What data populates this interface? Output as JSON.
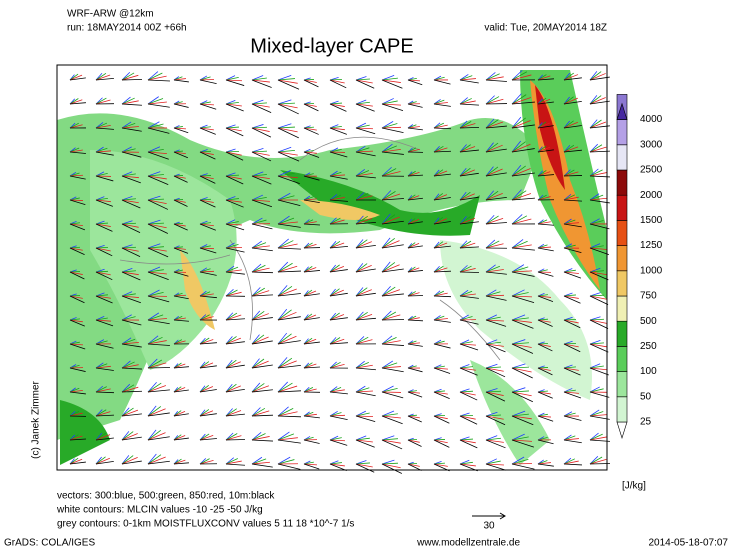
{
  "header": {
    "model": "WRF-ARW @12km",
    "run": "run: 18MAY2014 00Z +66h",
    "valid": "valid: Tue, 20MAY2014 18Z",
    "title": "Mixed-layer CAPE"
  },
  "credit": "(c) Janek Zimmer",
  "colorbar": {
    "levels": [
      25,
      50,
      100,
      250,
      500,
      750,
      1000,
      1250,
      1500,
      2000,
      2500,
      3000,
      4000
    ],
    "colors": [
      "#ffffff",
      "#d2f5d2",
      "#9ce69c",
      "#5acd5a",
      "#28aa28",
      "#f0f0b4",
      "#f0c864",
      "#f09632",
      "#e65014",
      "#c81414",
      "#8c0a0a",
      "#e6e6f5",
      "#b4a0e6",
      "#8c78d2",
      "#4628a0"
    ],
    "unit": "[J/kg]"
  },
  "notes": [
    "vectors: 300:blue, 500:green, 850:red, 10m:black",
    "white contours: MLCIN values -10 -25 -50 J/kg",
    "grey contours: 0-1km MOISTFLUXCONV values 5 11 18 *10^-7 1/s"
  ],
  "scale_arrow": "30",
  "footer": {
    "software": "GrADS: COLA/IGES",
    "site": "www.modellzentrale.de",
    "date": "2014-05-18-07:07"
  }
}
